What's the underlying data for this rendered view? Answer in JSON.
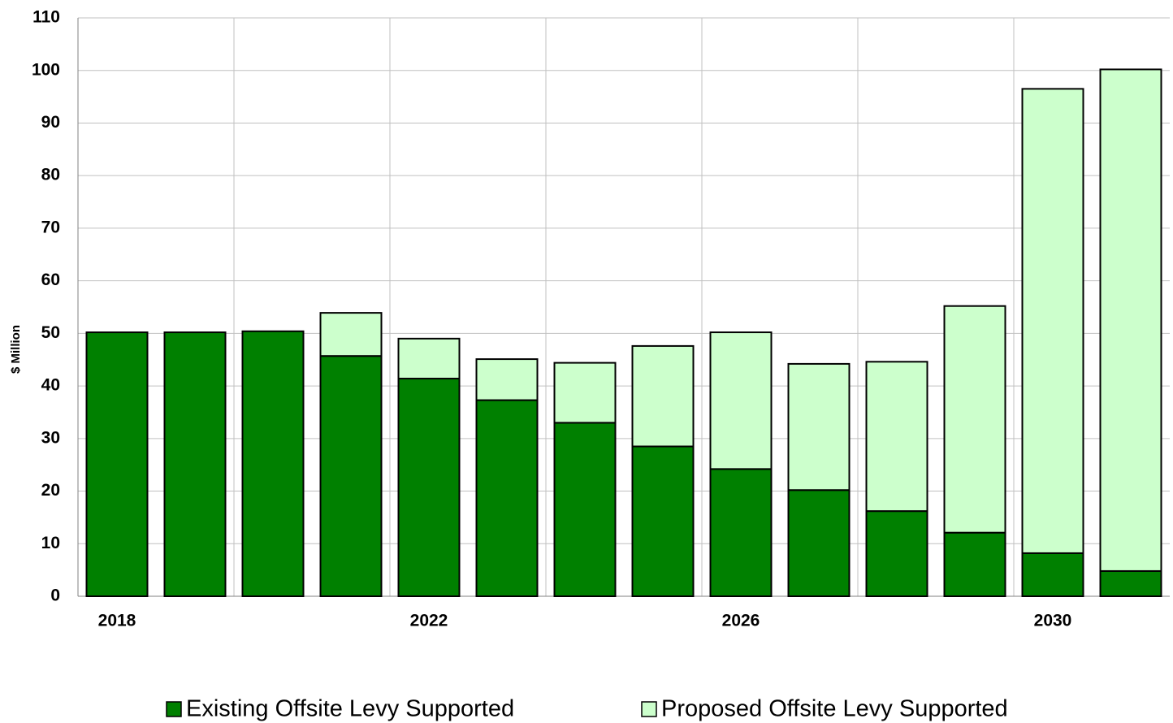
{
  "chart_data": {
    "type": "stacked_bar",
    "y_label": "$ Million",
    "categories": [
      "2018",
      null,
      null,
      null,
      "2022",
      null,
      null,
      null,
      "2026",
      null,
      null,
      null,
      "2030",
      null
    ],
    "series": [
      {
        "name": "Existing Offsite Levy Supported",
        "color": "#008000",
        "values": [
          50.2,
          50.2,
          50.4,
          45.7,
          41.4,
          37.3,
          33.0,
          28.5,
          24.2,
          20.2,
          16.2,
          12.1,
          8.2,
          4.8
        ]
      },
      {
        "name": "Proposed Offsite Levy Supported",
        "color": "#ccffcc",
        "values": [
          0,
          0,
          0,
          8.2,
          7.6,
          7.8,
          11.4,
          19.1,
          26.0,
          24.0,
          28.4,
          43.1,
          88.3,
          95.4
        ]
      }
    ],
    "ylim": [
      0,
      110
    ],
    "yticks": [
      0,
      10,
      20,
      30,
      40,
      50,
      60,
      70,
      80,
      90,
      100,
      110
    ],
    "grid": true
  }
}
